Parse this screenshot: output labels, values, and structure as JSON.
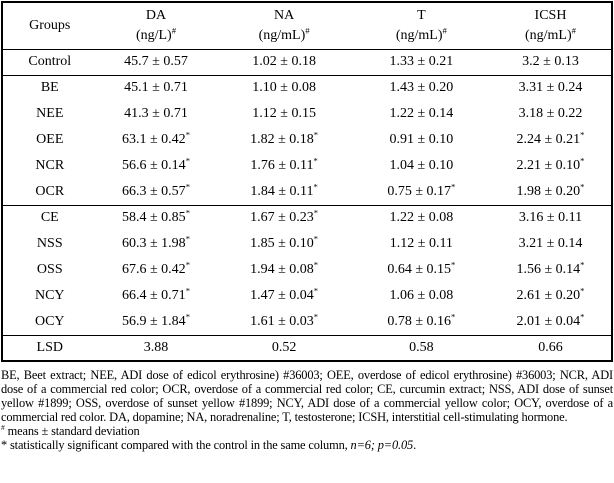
{
  "table": {
    "columns": [
      {
        "label": "Groups",
        "unit": "",
        "sup": ""
      },
      {
        "label": "DA",
        "unit": "(ng/L)",
        "sup": "#"
      },
      {
        "label": "NA",
        "unit": "(ng/mL)",
        "sup": "#"
      },
      {
        "label": "T",
        "unit": "(ng/mL)",
        "sup": "#"
      },
      {
        "label": "ICSH",
        "unit": "(ng/mL)",
        "sup": "#"
      }
    ],
    "sections": [
      {
        "rows": [
          {
            "name": "Control",
            "values": [
              "45.7 ± 0.57",
              "1.02 ± 0.18",
              "1.33 ± 0.21",
              "3.2 ± 0.13"
            ]
          }
        ]
      },
      {
        "rows": [
          {
            "name": "BE",
            "values": [
              "45.1 ± 0.71",
              "1.10 ± 0.08",
              "1.43 ± 0.20",
              "3.31 ± 0.24"
            ]
          },
          {
            "name": "NEE",
            "values": [
              "41.3 ± 0.71",
              "1.12 ± 0.15",
              "1.22 ± 0.14",
              "3.18 ± 0.22"
            ]
          },
          {
            "name": "OEE",
            "values": [
              "63.1 ± 0.42*",
              "1.82 ± 0.18*",
              "0.91 ± 0.10",
              "2.24 ± 0.21*"
            ]
          },
          {
            "name": "NCR",
            "values": [
              "56.6 ± 0.14*",
              "1.76 ± 0.11*",
              "1.04 ± 0.10",
              "2.21 ± 0.10*"
            ]
          },
          {
            "name": "OCR",
            "values": [
              "66.3 ± 0.57*",
              "1.84 ± 0.11*",
              "0.75 ± 0.17*",
              "1.98 ± 0.20*"
            ]
          }
        ]
      },
      {
        "rows": [
          {
            "name": "CE",
            "values": [
              "58.4 ± 0.85*",
              "1.67 ± 0.23*",
              "1.22 ± 0.08",
              "3.16 ± 0.11"
            ]
          },
          {
            "name": "NSS",
            "values": [
              "60.3 ± 1.98*",
              "1.85 ± 0.10*",
              "1.12 ± 0.11",
              "3.21 ± 0.14"
            ]
          },
          {
            "name": "OSS",
            "values": [
              "67.6 ± 0.42*",
              "1.94 ± 0.08*",
              "0.64 ± 0.15*",
              "1.56 ± 0.14*"
            ]
          },
          {
            "name": "NCY",
            "values": [
              "66.4 ± 0.71*",
              "1.47 ± 0.04*",
              "1.06 ± 0.08",
              "2.61 ± 0.20*"
            ]
          },
          {
            "name": "OCY",
            "values": [
              "56.9 ± 1.84*",
              "1.61 ± 0.03*",
              "0.78 ± 0.16*",
              "2.01 ± 0.04*"
            ]
          }
        ]
      },
      {
        "rows": [
          {
            "name": "LSD",
            "values": [
              "3.88",
              "0.52",
              "0.58",
              "0.66"
            ]
          }
        ]
      }
    ]
  },
  "footnotes": {
    "abbreviations": "BE, Beet extract; NEE, ADI dose of edicol erythrosine) #36003; OEE, overdose of edicol erythrosine) #36003; NCR, ADI dose of a commercial red color; OCR, overdose of a commercial red color; CE, curcumin extract; NSS, ADI dose of sunset yellow #1899; OSS, overdose of sunset yellow #1899; NCY, ADI dose of a commercial yellow color; OCY, overdose of a commercial red color. DA,  dopamine; NA, noradrenaline; T, testosterone; ICSH, interstitial cell-stimulating hormone.",
    "hash_symbol": "#",
    "hash_note": " means ± standard deviation",
    "star_note_prefix": "* statistically significant compared with the control in the same column,  ",
    "star_note_italic": "n=6; p=0.05",
    "star_note_suffix": "."
  }
}
